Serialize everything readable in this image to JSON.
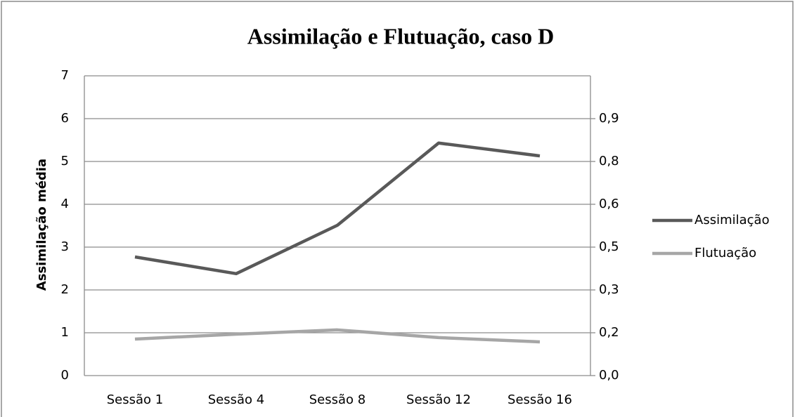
{
  "chart_data": {
    "type": "line",
    "title": "Assimilação e Flutuação, caso D",
    "ylabel": "Assimilação média",
    "categories": [
      "Sessão 1",
      "Sessão 4",
      "Sessão 8",
      "Sessão 12",
      "Sessão 16"
    ],
    "series": [
      {
        "name": "Assimilação",
        "color": "#595959",
        "values": [
          2.77,
          2.38,
          3.51,
          5.43,
          5.13
        ]
      },
      {
        "name": "Flutuação",
        "color": "#a6a6a6",
        "axis": "y2",
        "values": [
          0.128,
          0.145,
          0.16,
          0.133,
          0.118
        ]
      }
    ],
    "ylim": [
      0,
      7
    ],
    "yticks": [
      0,
      1,
      2,
      3,
      4,
      5,
      6,
      7
    ],
    "y2lim": [
      0,
      1.05
    ],
    "y2ticks": [
      {
        "value": 0,
        "label": "0,0"
      },
      {
        "value": 0.15,
        "label": "0,2"
      },
      {
        "value": 0.3,
        "label": "0,3"
      },
      {
        "value": 0.45,
        "label": "0,5"
      },
      {
        "value": 0.6,
        "label": "0,6"
      },
      {
        "value": 0.75,
        "label": "0,8"
      },
      {
        "value": 0.9,
        "label": "0,9"
      }
    ],
    "grid": true,
    "legend": "right"
  }
}
